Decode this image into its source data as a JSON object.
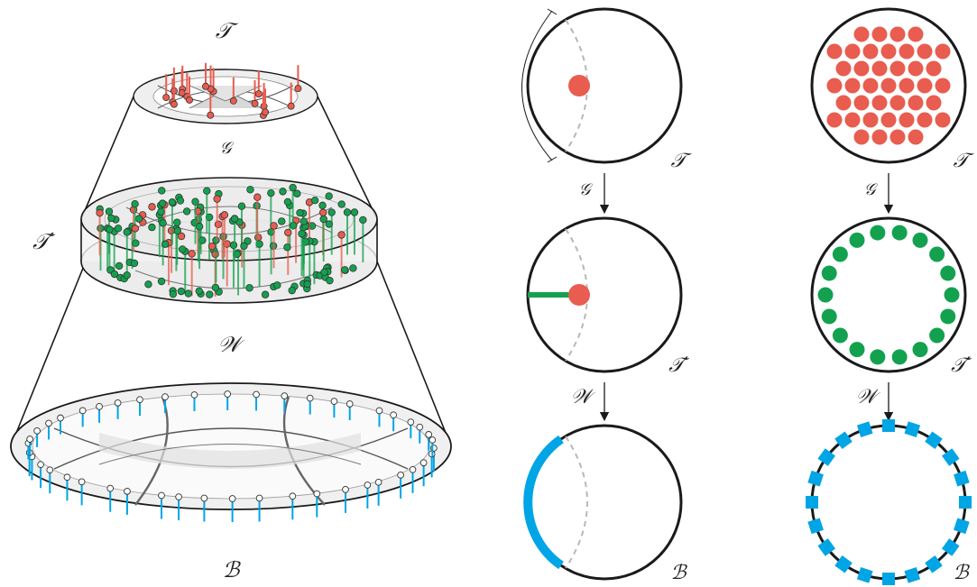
{
  "labels": {
    "stack_top": "𝒯",
    "stack_gate": "𝒢",
    "stack_middle": "𝒯′",
    "stack_wave": "𝒲",
    "stack_boundary": "ℬ",
    "col1_top": "𝒯",
    "col1_arrow1": "𝒢",
    "col1_middle": "𝒯′",
    "col1_arrow2": "𝒲",
    "col1_bottom": "ℬ",
    "col2_top": "𝒯",
    "col2_arrow1": "𝒢",
    "col2_middle": "𝒯′",
    "col2_arrow2": "𝒲",
    "col2_bottom": "ℬ"
  },
  "colors": {
    "red": "#e85d4f",
    "green": "#14a14f",
    "blue": "#00a5e6",
    "ink": "#1a1a1a",
    "disk_fill": "#f2f2f2",
    "shade": "#dcdcdc",
    "dash": "#b8b8b8"
  }
}
